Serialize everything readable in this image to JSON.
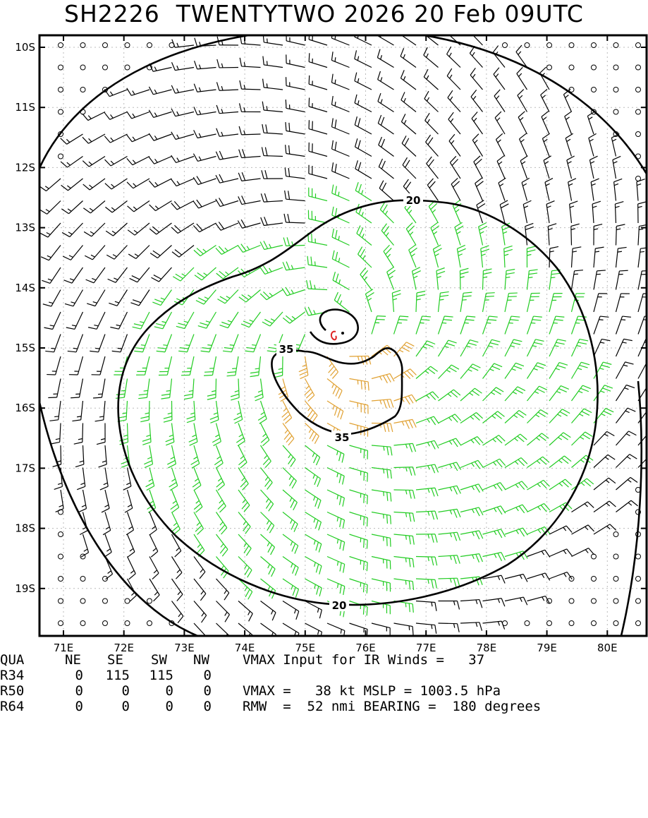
{
  "header": {
    "title": "SH2226  TWENTYTWO 2026 20 Feb 09UTC"
  },
  "map": {
    "lat_labels": [
      "10S",
      "11S",
      "12S",
      "13S",
      "14S",
      "15S",
      "16S",
      "17S",
      "18S",
      "19S"
    ],
    "lon_labels": [
      "71E",
      "72E",
      "73E",
      "74E",
      "75E",
      "76E",
      "77E",
      "78E",
      "79E",
      "80E"
    ],
    "contours": [
      {
        "value": 20,
        "label": "20"
      },
      {
        "value": 35,
        "label": "35"
      }
    ],
    "center": {
      "lon": 75.6,
      "lat": -14.8
    },
    "colors": {
      "calm_or_low": "#000000",
      "ts_green": "#22cc22",
      "gale_orange": "#e0a030",
      "center_red": "#dd2222"
    }
  },
  "footer": {
    "header_row": {
      "label": "QUA",
      "cols": [
        "NE",
        "SE",
        "SW",
        "NW"
      ],
      "right": "VMAX Input for IR Winds =   37"
    },
    "rows": [
      {
        "label": "R34",
        "values": [
          "0",
          "115",
          "115",
          "0"
        ],
        "right": ""
      },
      {
        "label": "R50",
        "values": [
          "0",
          "0",
          "0",
          "0"
        ],
        "right": "VMAX =   38 kt MSLP = 1003.5 hPa"
      },
      {
        "label": "R64",
        "values": [
          "0",
          "0",
          "0",
          "0"
        ],
        "right": "RMW  =  52 nmi BEARING =  180 degrees"
      }
    ]
  }
}
